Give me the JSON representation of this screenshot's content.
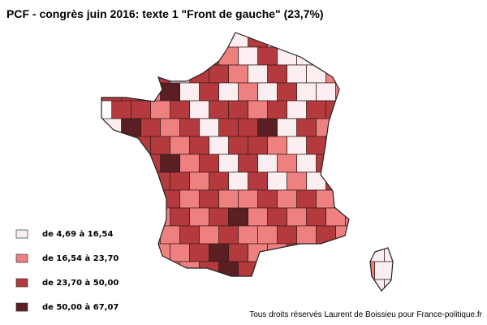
{
  "title": "PCF - congrès juin 2016: texte 1 \"Front de gauche\" (23,7%)",
  "legend": [
    {
      "label": "de 4,69 à 16,54",
      "color": "#fbeef0"
    },
    {
      "label": "de 16,54 à 23,70",
      "color": "#ee8080"
    },
    {
      "label": "de 23,70 à 50,00",
      "color": "#b53a3e"
    },
    {
      "label": "de 50,00 à 67,07",
      "color": "#5a1f22"
    }
  ],
  "footer": "Tous droits réservés Laurent de Boissieu pour France-politique.fr"
}
